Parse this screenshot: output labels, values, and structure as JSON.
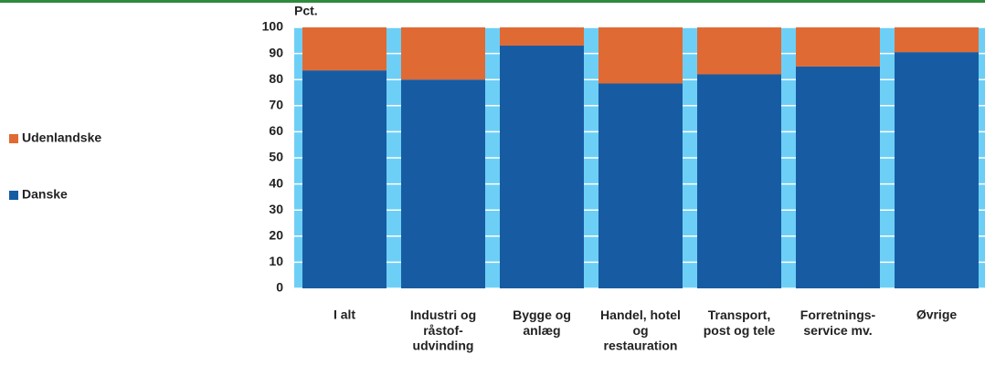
{
  "chart_data": {
    "type": "stacked_bar",
    "y_label": "Pct.",
    "categories": [
      "I alt",
      "Industri og\nråstof-\nudvinding",
      "Bygge og\nanlæg",
      "Handel, hotel\nog\nrestauration",
      "Transport,\npost og tele",
      "Forretnings-\nservice mv.",
      "Øvrige"
    ],
    "series": [
      {
        "name": "Danske",
        "color": "#175ca3",
        "values": [
          83.5,
          80,
          93,
          78.5,
          82,
          85,
          90.5
        ]
      },
      {
        "name": "Udenlandske",
        "color": "#e06a34",
        "values": [
          16.5,
          20,
          7,
          21.5,
          18,
          15,
          9.5
        ]
      }
    ],
    "ylim": [
      0,
      100
    ],
    "yticks": [
      0,
      10,
      20,
      30,
      40,
      50,
      60,
      70,
      80,
      90,
      100
    ],
    "grid": true,
    "plot_background": "#6dcff6",
    "legend": "left"
  }
}
